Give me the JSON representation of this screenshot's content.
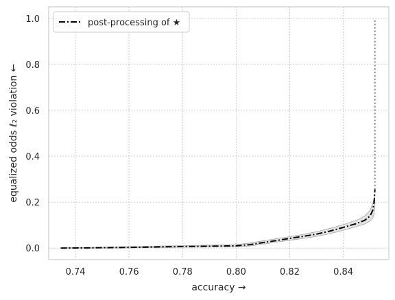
{
  "chart_data": {
    "type": "line",
    "title": "",
    "xlabel": "accuracy →",
    "ylabel": "equalized odds ℓ₂ violation ←",
    "xlim": [
      0.73,
      0.857
    ],
    "ylim": [
      -0.05,
      1.05
    ],
    "xticks": [
      0.74,
      0.76,
      0.78,
      0.8,
      0.82,
      0.84
    ],
    "xtick_labels": [
      "0.74",
      "0.76",
      "0.78",
      "0.80",
      "0.82",
      "0.84"
    ],
    "yticks": [
      0.0,
      0.2,
      0.4,
      0.6,
      0.8,
      1.0
    ],
    "ytick_labels": [
      "0.0",
      "0.2",
      "0.4",
      "0.6",
      "0.8",
      "1.0"
    ],
    "grid": true,
    "legend_position": "top-left",
    "series": [
      {
        "name": "post-processing of ★",
        "style": "dashdot",
        "color": "#000000",
        "x": [
          0.7345,
          0.745,
          0.76,
          0.775,
          0.79,
          0.8,
          0.805,
          0.81,
          0.815,
          0.82,
          0.825,
          0.83,
          0.835,
          0.84,
          0.845,
          0.848,
          0.85,
          0.851,
          0.8515,
          0.8518
        ],
        "y": [
          0.0,
          0.001,
          0.003,
          0.006,
          0.008,
          0.01,
          0.015,
          0.024,
          0.033,
          0.042,
          0.051,
          0.061,
          0.074,
          0.09,
          0.107,
          0.121,
          0.14,
          0.165,
          0.2,
          0.255
        ],
        "band_lower": [
          0.0,
          0.0,
          0.001,
          0.003,
          0.005,
          0.006,
          0.009,
          0.017,
          0.026,
          0.034,
          0.042,
          0.051,
          0.063,
          0.078,
          0.094,
          0.105,
          0.118,
          0.13,
          0.15,
          0.17
        ],
        "band_upper": [
          0.002,
          0.003,
          0.006,
          0.01,
          0.013,
          0.015,
          0.022,
          0.032,
          0.041,
          0.05,
          0.06,
          0.071,
          0.086,
          0.102,
          0.122,
          0.14,
          0.165,
          0.195,
          0.215,
          0.235
        ]
      },
      {
        "name": "",
        "style": "dotted",
        "color": "#7f7f7f",
        "x": [
          0.8518,
          0.8518
        ],
        "y": [
          0.255,
          1.0
        ]
      }
    ]
  },
  "colors": {
    "grid": "#cccccc",
    "spine": "#cccccc",
    "band": "#d9d9d9",
    "band_edge": "#a6a6a6"
  }
}
